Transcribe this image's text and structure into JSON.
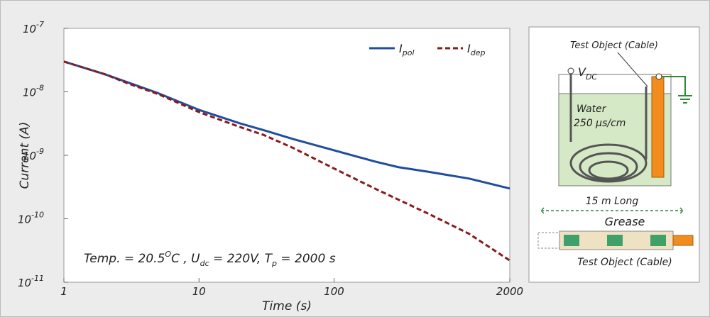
{
  "chart_data": {
    "type": "line",
    "log_x": true,
    "log_y": true,
    "x_label": "Time (s)",
    "y_label": "Current (A)",
    "xlim": [
      1,
      2000
    ],
    "ylim": [
      1e-11,
      1e-07
    ],
    "xticks": [
      1,
      10,
      100,
      2000
    ],
    "yticks": [
      {
        "value": 1e-07,
        "label": "10",
        "sup": "-7"
      },
      {
        "value": 1e-08,
        "label": "10",
        "sup": "-8"
      },
      {
        "value": 1e-09,
        "label": "10",
        "sup": "-9"
      },
      {
        "value": 1e-10,
        "label": "10",
        "sup": "-10"
      },
      {
        "value": 1e-11,
        "label": "10",
        "sup": "-11"
      }
    ],
    "x": [
      1,
      2,
      3,
      5,
      10,
      20,
      30,
      50,
      100,
      200,
      300,
      500,
      1000,
      2000
    ],
    "series": [
      {
        "name": "I",
        "sub": "pol",
        "color": "#1f4e9c",
        "dash": false,
        "values": [
          3e-08,
          1.9e-08,
          1.4e-08,
          9.5e-09,
          5.2e-09,
          3.2e-09,
          2.5e-09,
          1.8e-09,
          1.2e-09,
          8e-10,
          6.5e-10,
          5.5e-10,
          4.3e-10,
          3e-10
        ]
      },
      {
        "name": "I",
        "sub": "dep",
        "color": "#8b1a1a",
        "dash": true,
        "values": [
          3e-08,
          1.9e-08,
          1.35e-08,
          9.2e-09,
          4.8e-09,
          2.8e-09,
          2.1e-09,
          1.3e-09,
          6.2e-10,
          3e-10,
          2e-10,
          1.2e-10,
          5.8e-11,
          2.2e-11
        ]
      }
    ],
    "legend": "upper right",
    "annotation": [
      "Temp. = 20.5",
      "O",
      "C , U",
      "dc",
      " = 220V, T",
      "p",
      " = 2000 s"
    ]
  },
  "diagram": {
    "top_label": "Test Object (Cable)",
    "source": "V",
    "source_sub": "DC",
    "medium": "Water",
    "conductivity": "250 µs/cm",
    "length": "15 m Long",
    "layer": "Grease",
    "bottom_label": "Test Object (Cable)"
  }
}
